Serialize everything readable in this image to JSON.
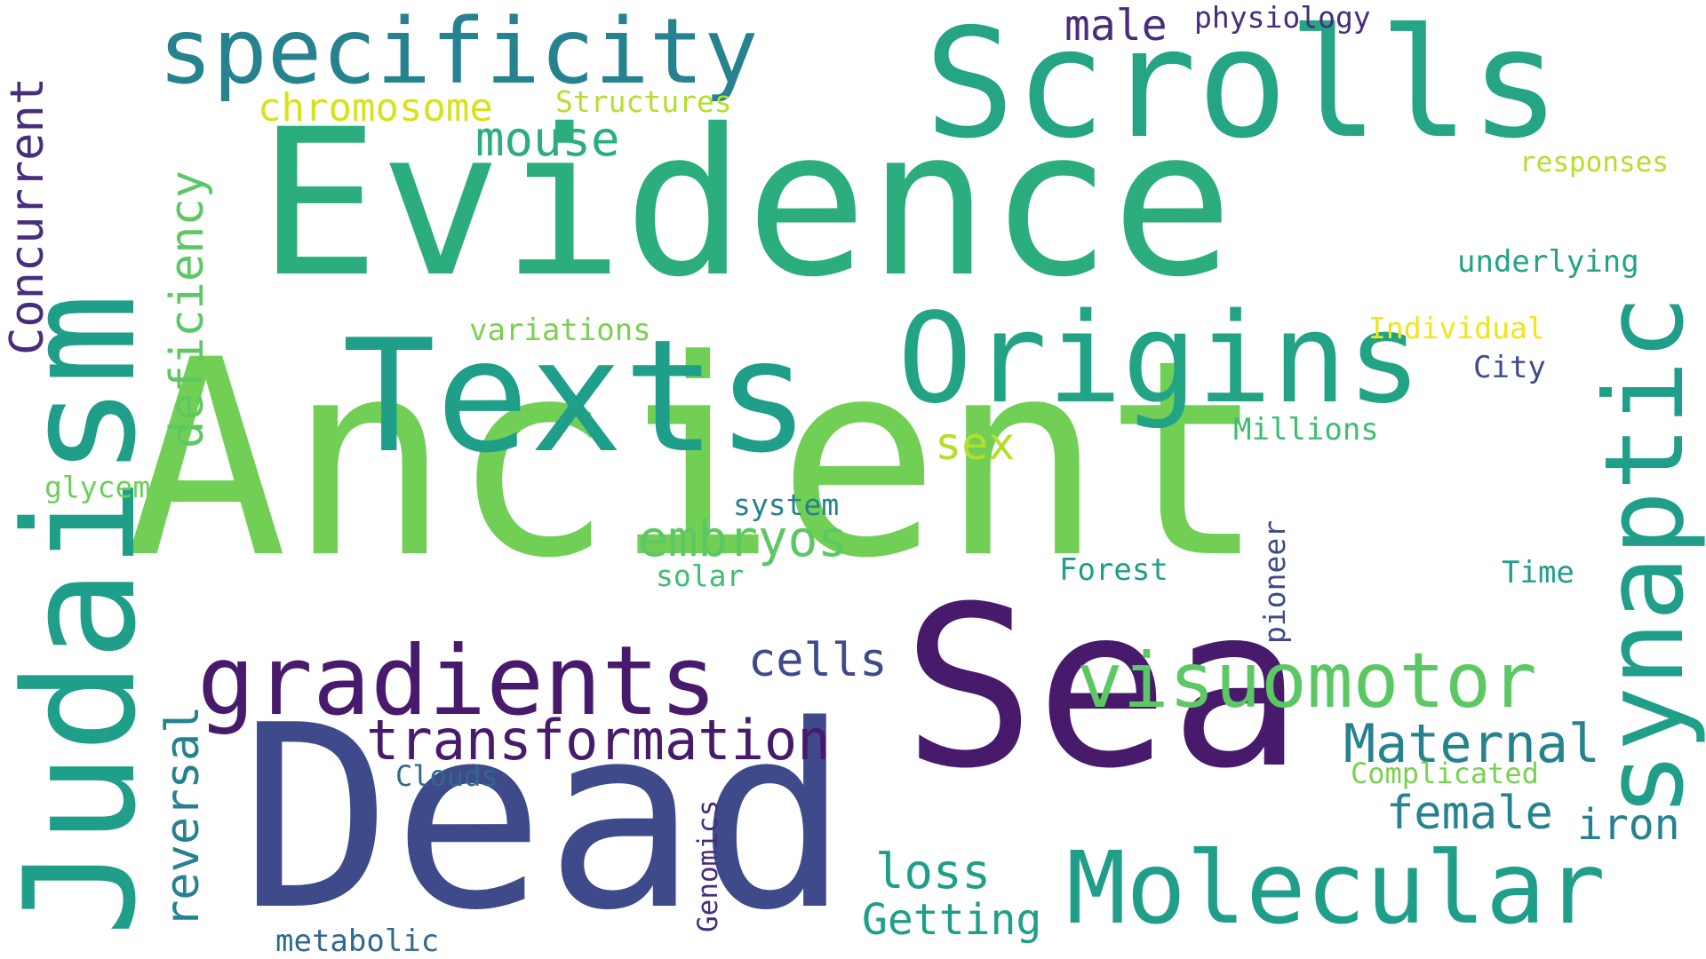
{
  "palette": {
    "dark_purple": "#481a6c",
    "purple": "#472d7b",
    "indigo": "#3e4a89",
    "blue": "#31688e",
    "teal": "#26828e",
    "teal_green": "#1f9e89",
    "green": "#35b779",
    "light_green": "#6ece58",
    "lime": "#b5de2b",
    "yellow": "#fde725"
  },
  "words": {
    "ancient": "Ancient",
    "evidence": "Evidence",
    "sea": "Sea",
    "dead": "Dead",
    "scrolls": "Scrolls",
    "judaism": "Judaism",
    "texts": "Texts",
    "origins": "Origins",
    "specificity": "specificity",
    "synaptic": "synaptic",
    "gradients": "gradients",
    "molecular": "Molecular",
    "visuomotor": "visuomotor",
    "transformation": "transformation",
    "maternal": "Maternal",
    "embryos": "embryos",
    "deficiency": "deficiency",
    "concurrent": "Concurrent",
    "chromosome": "chromosome",
    "mouse": "mouse",
    "male": "male",
    "physiology": "physiology",
    "structures": "Structures",
    "responses": "responses",
    "underlying": "underlying",
    "individual": "Individual",
    "city": "City",
    "millions": "Millions",
    "variations": "variations",
    "sex": "sex",
    "glycemic": "glycemic",
    "system": "system",
    "solar": "solar",
    "forest": "Forest",
    "time": "Time",
    "pioneer": "pioneer",
    "cells": "cells",
    "reversal": "reversal",
    "clouds": "Clouds",
    "genomics": "Genomics",
    "complicated": "Complicated",
    "female": "female",
    "iron": "iron",
    "loss": "loss",
    "getting": "Getting",
    "metabolic": "metabolic"
  }
}
